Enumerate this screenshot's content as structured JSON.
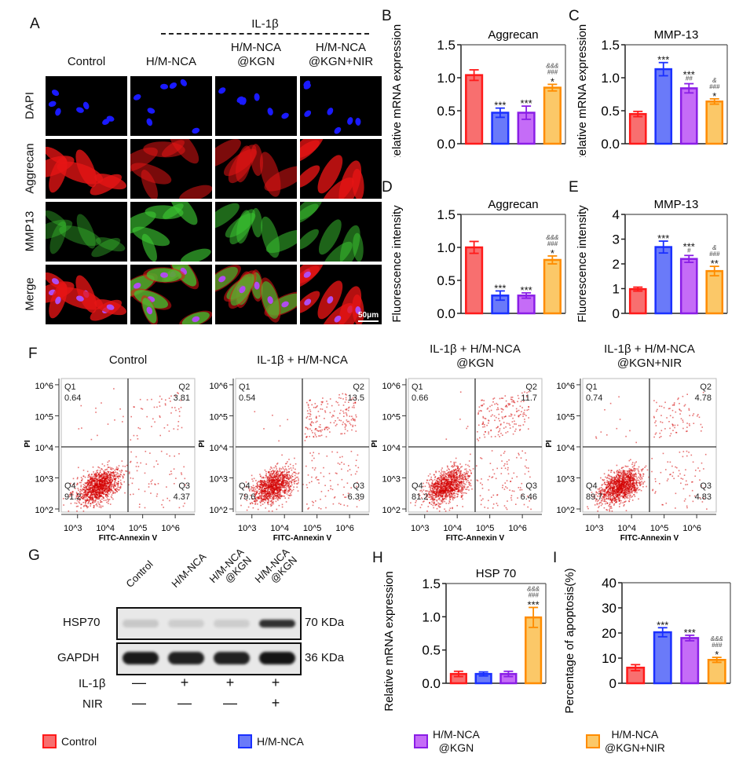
{
  "colors": {
    "control": {
      "fill": "#f86f6f",
      "stroke": "#ff1a1a"
    },
    "hmnca": {
      "fill": "#6a7af9",
      "stroke": "#1a30ff"
    },
    "hmnca_kgn": {
      "fill": "#c56cf7",
      "stroke": "#8a1ee6"
    },
    "hmnca_kgn_nir": {
      "fill": "#fbc868",
      "stroke": "#ff8c00"
    },
    "dot": "#d40000"
  },
  "panelA": {
    "letter": "A",
    "treatment_header": "IL-1β",
    "columns": [
      "Control",
      "H/M-NCA",
      "H/M-NCA\n@KGN",
      "H/M-NCA\n@KGN+NIR"
    ],
    "column_lines": [
      [
        "Control"
      ],
      [
        "H/M-NCA"
      ],
      [
        "H/M-NCA",
        "@KGN"
      ],
      [
        "H/M-NCA",
        "@KGN+NIR"
      ]
    ],
    "rows": [
      "DAPI",
      "Aggrecan",
      "MMP13",
      "Merge"
    ],
    "scale_bar": "50μm"
  },
  "chart_data": [
    {
      "panel": "B",
      "type": "bar",
      "title": "Aggrecan",
      "ylabel": "Relative mRNA expression",
      "ylim": [
        0,
        1.5
      ],
      "yticks": [
        "0.0",
        "0.5",
        "1.0",
        "1.5"
      ],
      "ytick_values": [
        0,
        0.5,
        1.0,
        1.5
      ],
      "categories": [
        "Control",
        "H/M-NCA",
        "H/M-NCA @KGN",
        "H/M-NCA @KGN+NIR"
      ],
      "values": [
        1.04,
        0.47,
        0.47,
        0.85
      ],
      "errors": [
        0.08,
        0.07,
        0.1,
        0.05
      ],
      "annotations": [
        [],
        [
          "***"
        ],
        [
          "***"
        ],
        [
          "&&&",
          "###",
          "*"
        ]
      ]
    },
    {
      "panel": "C",
      "type": "bar",
      "title": "MMP-13",
      "ylabel": "Relative mRNA expression",
      "ylim": [
        0,
        1.5
      ],
      "yticks": [
        "0.0",
        "0.5",
        "1.0",
        "1.5"
      ],
      "ytick_values": [
        0,
        0.5,
        1.0,
        1.5
      ],
      "categories": [
        "Control",
        "H/M-NCA",
        "H/M-NCA @KGN",
        "H/M-NCA @KGN+NIR"
      ],
      "values": [
        0.45,
        1.13,
        0.84,
        0.64
      ],
      "errors": [
        0.04,
        0.1,
        0.07,
        0.04
      ],
      "annotations": [
        [],
        [
          "***"
        ],
        [
          "***",
          "##"
        ],
        [
          "&",
          "###",
          "*"
        ]
      ]
    },
    {
      "panel": "D",
      "type": "bar",
      "title": "Aggrecan",
      "ylabel": "Fluorescence intensity",
      "ylim": [
        0,
        1.5
      ],
      "yticks": [
        "0.0",
        "0.5",
        "1.0",
        "1.5"
      ],
      "ytick_values": [
        0,
        0.5,
        1.0,
        1.5
      ],
      "categories": [
        "Control",
        "H/M-NCA",
        "H/M-NCA @KGN",
        "H/M-NCA @KGN+NIR"
      ],
      "values": [
        1.0,
        0.27,
        0.27,
        0.81
      ],
      "errors": [
        0.09,
        0.07,
        0.04,
        0.06
      ],
      "annotations": [
        [],
        [
          "***"
        ],
        [
          "***"
        ],
        [
          "&&&",
          "###",
          "*"
        ]
      ]
    },
    {
      "panel": "E",
      "type": "bar",
      "title": "MMP-13",
      "ylabel": "Fluorescence intensity",
      "ylim": [
        0,
        4
      ],
      "yticks": [
        "0",
        "1",
        "2",
        "3",
        "4"
      ],
      "ytick_values": [
        0,
        1,
        2,
        3,
        4
      ],
      "categories": [
        "Control",
        "H/M-NCA",
        "H/M-NCA @KGN",
        "H/M-NCA @KGN+NIR"
      ],
      "values": [
        0.98,
        2.68,
        2.2,
        1.71
      ],
      "errors": [
        0.08,
        0.24,
        0.14,
        0.19
      ],
      "annotations": [
        [],
        [
          "***"
        ],
        [
          "***",
          "#"
        ],
        [
          "&",
          "###",
          "**"
        ]
      ]
    },
    {
      "panel": "H",
      "type": "bar",
      "title": "HSP 70",
      "ylabel": "Relative mRNA expression",
      "ylim": [
        0,
        1.5
      ],
      "yticks": [
        "0.0",
        "0.5",
        "1.0",
        "1.5"
      ],
      "ytick_values": [
        0,
        0.5,
        1.0,
        1.5
      ],
      "categories": [
        "Control",
        "H/M-NCA",
        "H/M-NCA @KGN",
        "H/M-NCA @KGN+NIR"
      ],
      "values": [
        0.14,
        0.14,
        0.14,
        0.99
      ],
      "errors": [
        0.04,
        0.03,
        0.04,
        0.15
      ],
      "annotations": [
        [],
        [],
        [],
        [
          "&&&",
          "###",
          "***"
        ]
      ]
    },
    {
      "panel": "I",
      "type": "bar",
      "title": "",
      "ylabel": "Percentage of apoptosis(%)",
      "ylim": [
        0,
        40
      ],
      "yticks": [
        "0",
        "10",
        "20",
        "30",
        "40"
      ],
      "ytick_values": [
        0,
        10,
        20,
        30,
        40
      ],
      "categories": [
        "Control",
        "H/M-NCA",
        "H/M-NCA @KGN",
        "H/M-NCA @KGN+NIR"
      ],
      "values": [
        6.2,
        20.3,
        18.0,
        9.3
      ],
      "errors": [
        1.2,
        1.8,
        1.1,
        1.0
      ],
      "annotations": [
        [],
        [
          "***"
        ],
        [
          "***"
        ],
        [
          "&&&",
          "###",
          "*"
        ]
      ]
    },
    {
      "panel": "F",
      "type": "scatter",
      "subtype": "flow-cytometry quadrant plots",
      "xlabel": "FITC-Annexin V",
      "ylabel": "PI",
      "xticks": [
        "10^3",
        "10^4",
        "10^5",
        "10^6"
      ],
      "yticks": [
        "10^2",
        "10^3",
        "10^4",
        "10^5",
        "10^6"
      ],
      "xlim_log10": [
        2.5,
        6.6
      ],
      "ylim_log10": [
        1.9,
        6.2
      ],
      "gate_log10": {
        "x": 4.55,
        "y": 4.0
      },
      "plots": [
        {
          "title_lines": [
            "Control"
          ],
          "Q1": "0.64",
          "Q2": "3.81",
          "Q3": "4.37",
          "Q4": "91.2"
        },
        {
          "title_lines": [
            "IL-1β + H/M-NCA"
          ],
          "Q1": "0.54",
          "Q2": "13.5",
          "Q3": "6.39",
          "Q4": "79.6"
        },
        {
          "title_lines": [
            "IL-1β + H/M-NCA",
            "@KGN"
          ],
          "Q1": "0.66",
          "Q2": "11.7",
          "Q3": "6.46",
          "Q4": "81.2"
        },
        {
          "title_lines": [
            "IL-1β + H/M-NCA",
            "@KGN+NIR"
          ],
          "Q1": "0.74",
          "Q2": "4.78",
          "Q3": "4.83",
          "Q4": "89.7"
        }
      ]
    }
  ],
  "panelF": {
    "letter": "F",
    "q_labels": [
      "Q1",
      "Q2",
      "Q3",
      "Q4"
    ]
  },
  "panelG": {
    "letter": "G",
    "lanes": [
      [
        "Control"
      ],
      [
        "H/M-NCA"
      ],
      [
        "H/M-NCA",
        "@KGN"
      ],
      [
        "H/M-NCA",
        "@KGN"
      ]
    ],
    "bands": [
      {
        "name": "HSP70",
        "kda": "70 KDa",
        "intensity": [
          0.15,
          0.12,
          0.12,
          0.85
        ]
      },
      {
        "name": "GAPDH",
        "kda": "36 KDa",
        "intensity": [
          0.95,
          0.92,
          0.92,
          0.98
        ]
      }
    ],
    "conditions": [
      {
        "label": "IL-1β",
        "signs": [
          "—",
          "+",
          "+",
          "+"
        ]
      },
      {
        "label": "NIR",
        "signs": [
          "—",
          "—",
          "—",
          "+"
        ]
      }
    ]
  },
  "panel_letters": {
    "B": "B",
    "C": "C",
    "D": "D",
    "E": "E",
    "H": "H",
    "I": "I"
  },
  "legend": [
    {
      "key": "control",
      "lines": [
        "Control"
      ]
    },
    {
      "key": "hmnca",
      "lines": [
        "H/M-NCA"
      ]
    },
    {
      "key": "hmnca_kgn",
      "lines": [
        "H/M-NCA",
        "@KGN"
      ]
    },
    {
      "key": "hmnca_kgn_nir",
      "lines": [
        "H/M-NCA",
        "@KGN+NIR"
      ]
    }
  ]
}
